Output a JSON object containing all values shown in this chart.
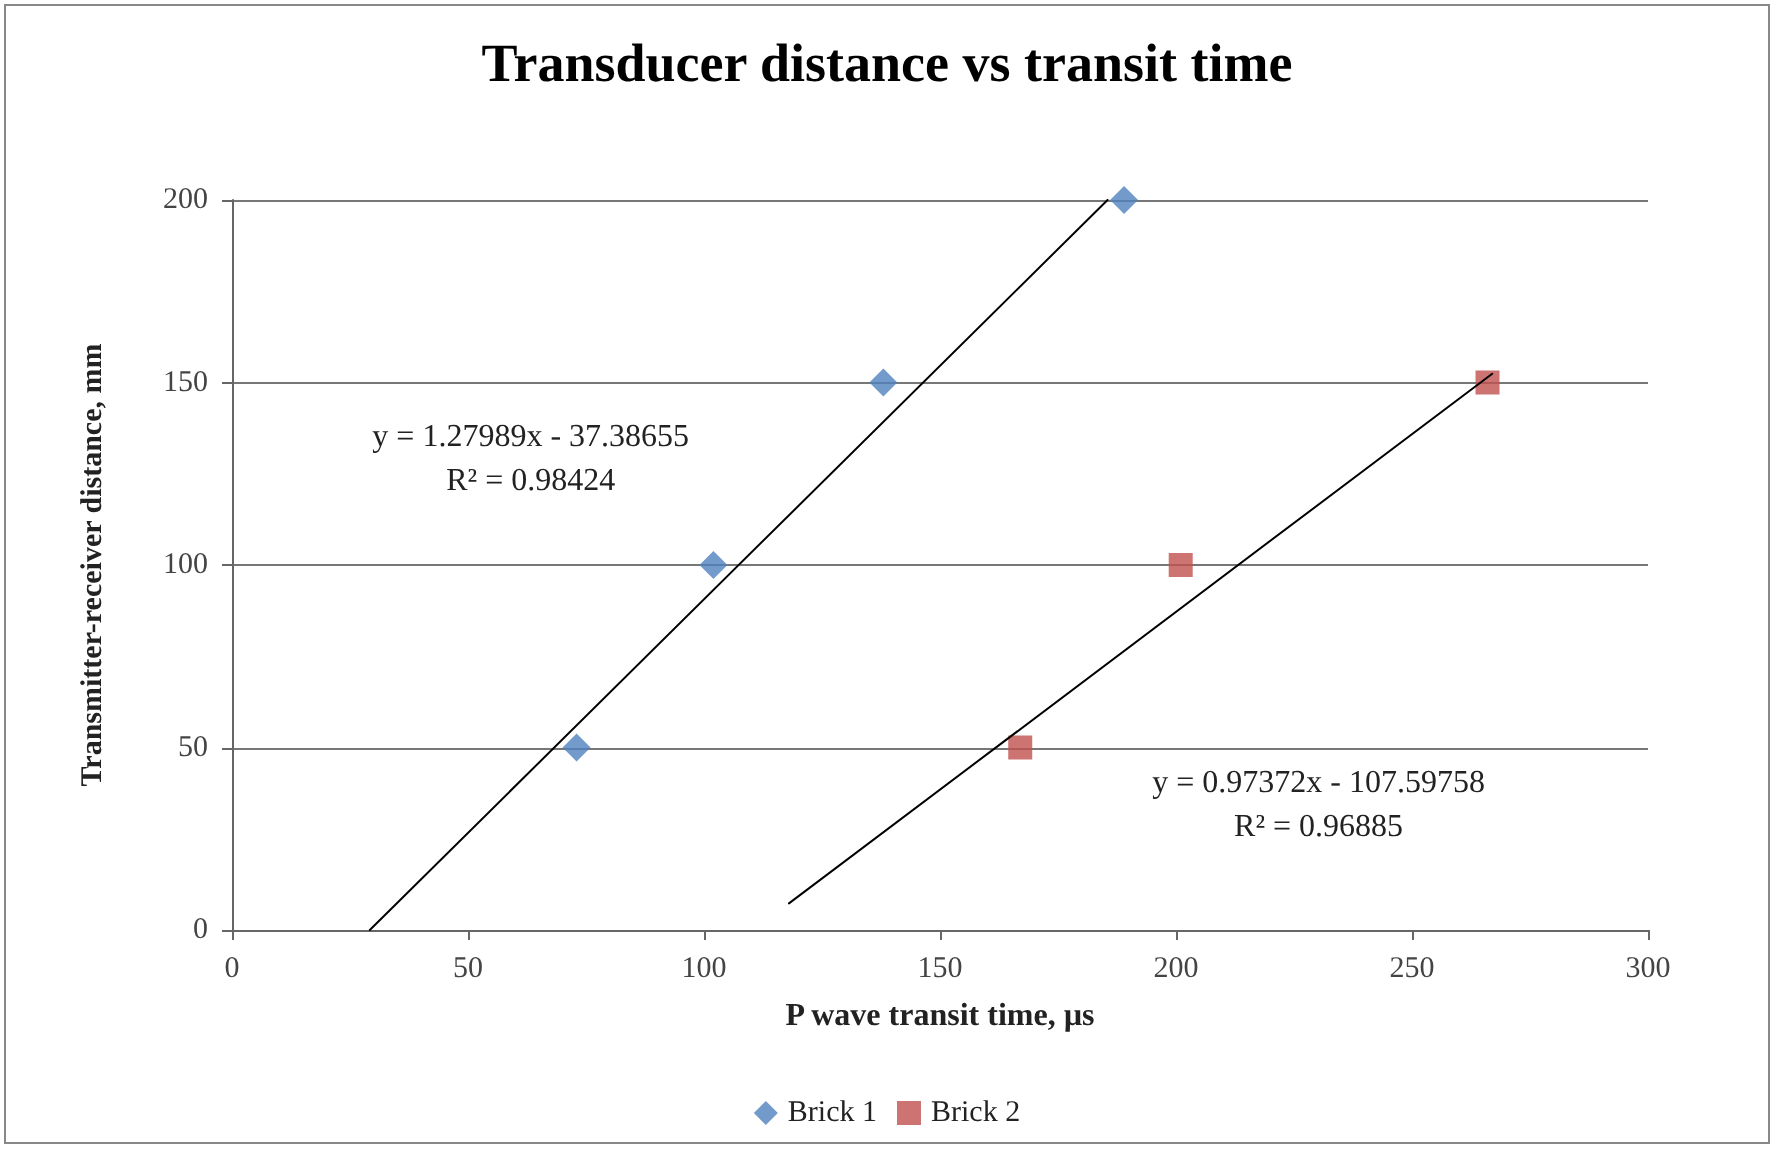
{
  "chart_data": {
    "type": "scatter",
    "title": "Transducer distance vs transit time",
    "xlabel": "P wave transit time, µs",
    "ylabel": "Transmitter-receiver distance, mm",
    "series": [
      {
        "name": "Brick 1",
        "color": "#4f81bd",
        "marker": "diamond",
        "x": [
          73,
          102,
          138,
          189
        ],
        "values": [
          50,
          100,
          150,
          200
        ]
      },
      {
        "name": "Brick 2",
        "color": "#c0504d",
        "marker": "square",
        "x": [
          167,
          201,
          266
        ],
        "values": [
          50,
          100,
          150
        ]
      },
      {
        "type": "line",
        "color": "#000000",
        "marker": "none",
        "x": [
          29.2,
          185.5
        ],
        "values": [
          0,
          200
        ]
      },
      {
        "type": "line",
        "color": "#000000",
        "marker": "none",
        "x": [
          118,
          267
        ],
        "values": [
          7.3,
          152.4
        ]
      }
    ],
    "annotations": [
      "y = 1.27989x - 37.38655\nR² = 0.98424",
      "y = 0.97372x - 107.59758\nR² = 0.96885"
    ],
    "xlim": [
      0,
      300
    ],
    "xticks": [
      0,
      50,
      100,
      150,
      200,
      250,
      300
    ],
    "ylim": [
      0,
      200
    ],
    "yticks": [
      0,
      50,
      100,
      150,
      200
    ],
    "grid": "y",
    "legend": "bottom"
  }
}
